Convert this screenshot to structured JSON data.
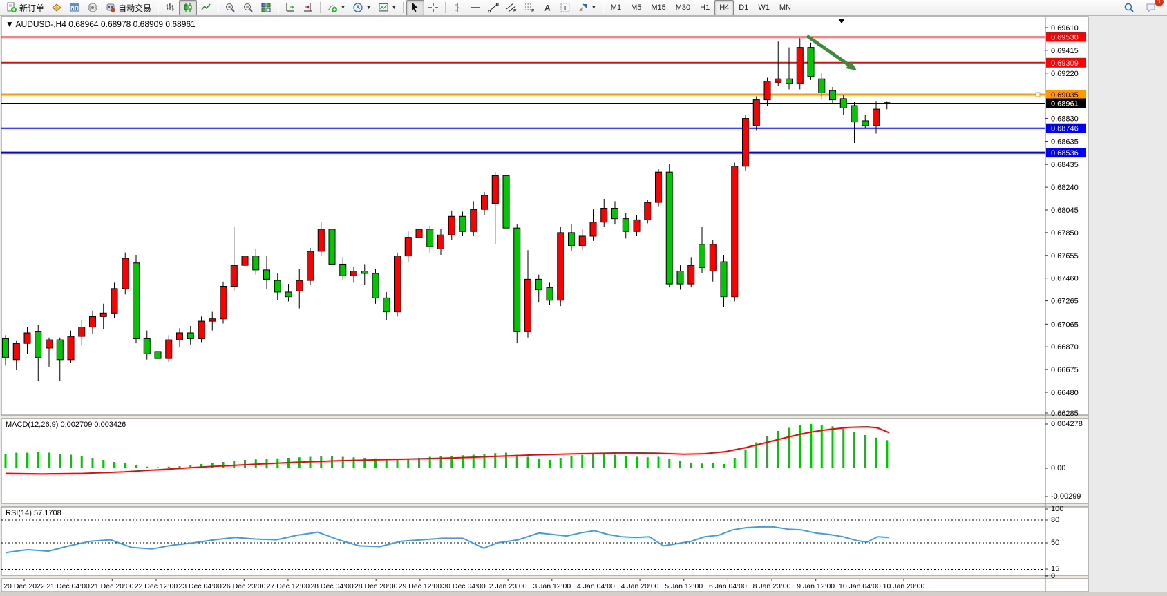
{
  "toolbar": {
    "buttons": [
      {
        "name": "new-order-button",
        "icon": "new-order",
        "label": "新订单"
      },
      {
        "name": "wallet-button",
        "icon": "wallet"
      },
      {
        "name": "charts-window-button",
        "icon": "chart-window"
      },
      {
        "name": "signals-button",
        "icon": "signal"
      },
      {
        "name": "auto-trading-button",
        "icon": "robot",
        "label": "自动交易"
      },
      {
        "sep": true
      },
      {
        "name": "bar-chart-button",
        "icon": "ohlc-bars"
      },
      {
        "name": "candlestick-button",
        "icon": "candles",
        "active": true
      },
      {
        "name": "line-chart-button",
        "icon": "line-chart"
      },
      {
        "sep": true
      },
      {
        "name": "zoom-in-button",
        "icon": "zoom-in"
      },
      {
        "name": "zoom-out-button",
        "icon": "zoom-out"
      },
      {
        "name": "tile-windows-button",
        "icon": "tiles"
      },
      {
        "sep": true
      },
      {
        "name": "auto-scroll-button",
        "icon": "auto-scroll"
      },
      {
        "name": "chart-shift-button",
        "icon": "chart-shift"
      },
      {
        "sep": true
      },
      {
        "name": "indicators-button",
        "icon": "indicator-add",
        "dropdown": true
      },
      {
        "name": "periods-button",
        "icon": "clock",
        "dropdown": true
      },
      {
        "name": "templates-button",
        "icon": "template",
        "dropdown": true
      },
      {
        "sep": true
      },
      {
        "name": "cursor-button",
        "icon": "cursor",
        "active": true
      },
      {
        "name": "crosshair-button",
        "icon": "crosshair"
      },
      {
        "sep": true
      },
      {
        "name": "vline-button",
        "icon": "vline"
      },
      {
        "name": "hline-button",
        "icon": "hline"
      },
      {
        "name": "trendline-button",
        "icon": "trendline"
      },
      {
        "name": "channel-button",
        "icon": "channel"
      },
      {
        "name": "fibonacci-button",
        "icon": "fibonacci"
      },
      {
        "name": "text-button",
        "icon": "text-a"
      },
      {
        "name": "label-button",
        "icon": "label-t"
      },
      {
        "name": "arrows-button",
        "icon": "arrows",
        "dropdown": true
      },
      {
        "sep": true
      }
    ],
    "timeframes": [
      "M1",
      "M5",
      "M15",
      "M30",
      "H1",
      "H4",
      "D1",
      "W1",
      "MN"
    ],
    "active_timeframe": "H4",
    "right_buttons": [
      {
        "name": "search-button",
        "icon": "search"
      },
      {
        "name": "notifications-button",
        "icon": "chat",
        "badge": "1"
      }
    ]
  },
  "chart_data": {
    "type": "candlestick",
    "symbol": "AUDUSD-",
    "timeframe": "H4",
    "title": "AUDUSD-,H4",
    "title_ohlc": "0.68964 0.68978 0.68909 0.68961",
    "last_bar": {
      "open": 0.68964,
      "high": 0.68978,
      "low": 0.68909,
      "close": 0.68961
    },
    "price_axis_labels": [
      0.6961,
      0.69415,
      0.6922,
      0.6883,
      0.68635,
      0.68435,
      0.6824,
      0.68045,
      0.6785,
      0.67655,
      0.6746,
      0.67265,
      0.67065,
      0.6687,
      0.66675,
      0.6648,
      0.66285
    ],
    "horizontal_lines": [
      {
        "price": 0.6953,
        "label": "0.69530",
        "color": "#FF0000",
        "width": 2,
        "text": "#FFFFFF"
      },
      {
        "price": 0.69309,
        "label": "0.69309",
        "color": "#FF0000",
        "width": 2,
        "text": "#FFFFFF"
      },
      {
        "price": 0.69035,
        "label": "0.69035",
        "color": "#FF9900",
        "width": 3,
        "text": "#000000",
        "handle": true
      },
      {
        "price": 0.68961,
        "label": "0.68961",
        "color": "#000000",
        "width": 1,
        "text": "#FFFFFF"
      },
      {
        "price": 0.68746,
        "label": "0.68746",
        "color": "#0000FF",
        "width": 2,
        "text": "#FFFFFF"
      },
      {
        "price": 0.68536,
        "label": "0.68536",
        "color": "#0000FF",
        "width": 3,
        "text": "#FFFFFF"
      }
    ],
    "time_axis_labels": [
      "20 Dec 2022",
      "21 Dec 04:00",
      "21 Dec 20:00",
      "22 Dec 12:00",
      "23 Dec 04:00",
      "26 Dec 23:00",
      "27 Dec 12:00",
      "28 Dec 04:00",
      "28 Dec 20:00",
      "29 Dec 12:00",
      "30 Dec 04:00",
      "2 Jan 23:00",
      "3 Jan 12:00",
      "4 Jan 04:00",
      "4 Jan 20:00",
      "5 Jan 12:00",
      "6 Jan 04:00",
      "8 Jan 23:00",
      "9 Jan 12:00",
      "10 Jan 04:00",
      "10 Jan 20:00"
    ],
    "candles": [
      [
        0.6694,
        0.6697,
        0.6671,
        0.6678
      ],
      [
        0.6676,
        0.6692,
        0.6667,
        0.669
      ],
      [
        0.669,
        0.6704,
        0.6681,
        0.6699
      ],
      [
        0.67,
        0.6706,
        0.6658,
        0.6678
      ],
      [
        0.6686,
        0.6695,
        0.667,
        0.6693
      ],
      [
        0.6693,
        0.6695,
        0.6658,
        0.6676
      ],
      [
        0.6676,
        0.6701,
        0.6673,
        0.6696
      ],
      [
        0.6696,
        0.671,
        0.6688,
        0.6704
      ],
      [
        0.6704,
        0.6718,
        0.6698,
        0.6713
      ],
      [
        0.6713,
        0.6724,
        0.6702,
        0.6716
      ],
      [
        0.6716,
        0.6742,
        0.6712,
        0.6737
      ],
      [
        0.6737,
        0.6768,
        0.6732,
        0.6763
      ],
      [
        0.6759,
        0.6766,
        0.669,
        0.6694
      ],
      [
        0.6694,
        0.6701,
        0.6676,
        0.6681
      ],
      [
        0.6683,
        0.6692,
        0.6671,
        0.6677
      ],
      [
        0.6677,
        0.6697,
        0.6674,
        0.6693
      ],
      [
        0.6693,
        0.6703,
        0.6687,
        0.6699
      ],
      [
        0.6699,
        0.6705,
        0.6689,
        0.6694
      ],
      [
        0.6694,
        0.6713,
        0.6691,
        0.6709
      ],
      [
        0.6709,
        0.6717,
        0.6701,
        0.6711
      ],
      [
        0.6711,
        0.6743,
        0.6707,
        0.6739
      ],
      [
        0.6739,
        0.679,
        0.6735,
        0.6757
      ],
      [
        0.6757,
        0.6769,
        0.6747,
        0.6765
      ],
      [
        0.6765,
        0.6771,
        0.6749,
        0.6753
      ],
      [
        0.6753,
        0.6765,
        0.6737,
        0.6745
      ],
      [
        0.6744,
        0.675,
        0.6727,
        0.6734
      ],
      [
        0.6734,
        0.6741,
        0.6726,
        0.673
      ],
      [
        0.6735,
        0.6754,
        0.672,
        0.6744
      ],
      [
        0.6744,
        0.6772,
        0.674,
        0.6769
      ],
      [
        0.6769,
        0.6794,
        0.6765,
        0.6788
      ],
      [
        0.6788,
        0.6792,
        0.6754,
        0.6758
      ],
      [
        0.6758,
        0.6764,
        0.6744,
        0.6748
      ],
      [
        0.6748,
        0.6756,
        0.6742,
        0.6752
      ],
      [
        0.6752,
        0.6758,
        0.674,
        0.675
      ],
      [
        0.675,
        0.6754,
        0.6724,
        0.6729
      ],
      [
        0.6729,
        0.6734,
        0.671,
        0.6717
      ],
      [
        0.6717,
        0.6768,
        0.6713,
        0.6765
      ],
      [
        0.6765,
        0.6786,
        0.676,
        0.6781
      ],
      [
        0.6781,
        0.6794,
        0.6776,
        0.6788
      ],
      [
        0.6788,
        0.6791,
        0.6768,
        0.6773
      ],
      [
        0.6771,
        0.6788,
        0.6766,
        0.6783
      ],
      [
        0.6783,
        0.6804,
        0.6779,
        0.6799
      ],
      [
        0.6799,
        0.6803,
        0.6782,
        0.6786
      ],
      [
        0.6786,
        0.6812,
        0.6782,
        0.6805
      ],
      [
        0.6805,
        0.682,
        0.68,
        0.6817
      ],
      [
        0.681,
        0.6837,
        0.6775,
        0.6834
      ],
      [
        0.6834,
        0.684,
        0.6786,
        0.6789
      ],
      [
        0.6789,
        0.6792,
        0.669,
        0.67
      ],
      [
        0.67,
        0.677,
        0.6695,
        0.6745
      ],
      [
        0.6745,
        0.6749,
        0.6725,
        0.6736
      ],
      [
        0.6738,
        0.6742,
        0.6723,
        0.6727
      ],
      [
        0.6727,
        0.679,
        0.6722,
        0.6785
      ],
      [
        0.6785,
        0.6792,
        0.6769,
        0.6774
      ],
      [
        0.6774,
        0.6788,
        0.677,
        0.6782
      ],
      [
        0.6782,
        0.6805,
        0.6778,
        0.6794
      ],
      [
        0.6794,
        0.6814,
        0.679,
        0.6806
      ],
      [
        0.6806,
        0.6812,
        0.6792,
        0.6797
      ],
      [
        0.6797,
        0.6802,
        0.678,
        0.6786
      ],
      [
        0.6786,
        0.68,
        0.6782,
        0.6796
      ],
      [
        0.6796,
        0.6813,
        0.6793,
        0.6811
      ],
      [
        0.6811,
        0.684,
        0.6807,
        0.6837
      ],
      [
        0.6837,
        0.6844,
        0.6738,
        0.6741
      ],
      [
        0.6752,
        0.6757,
        0.6736,
        0.6741
      ],
      [
        0.6741,
        0.6764,
        0.6738,
        0.6757
      ],
      [
        0.6775,
        0.679,
        0.675,
        0.6755
      ],
      [
        0.6752,
        0.6779,
        0.6743,
        0.6775
      ],
      [
        0.676,
        0.6766,
        0.6721,
        0.673
      ],
      [
        0.673,
        0.6845,
        0.6726,
        0.6842
      ],
      [
        0.6842,
        0.6886,
        0.6838,
        0.6883
      ],
      [
        0.6877,
        0.6902,
        0.6873,
        0.6899
      ],
      [
        0.6899,
        0.6918,
        0.6894,
        0.6915
      ],
      [
        0.6914,
        0.6949,
        0.6911,
        0.6917
      ],
      [
        0.6917,
        0.6944,
        0.6908,
        0.6913
      ],
      [
        0.6913,
        0.6952,
        0.6908,
        0.6944
      ],
      [
        0.6944,
        0.6948,
        0.6916,
        0.6919
      ],
      [
        0.6917,
        0.6922,
        0.69,
        0.6905
      ],
      [
        0.6907,
        0.691,
        0.6896,
        0.6899
      ],
      [
        0.69,
        0.6903,
        0.6886,
        0.6892
      ],
      [
        0.6894,
        0.6897,
        0.6862,
        0.688
      ],
      [
        0.6881,
        0.6886,
        0.6875,
        0.6877
      ],
      [
        0.6877,
        0.6898,
        0.687,
        0.6891
      ],
      [
        0.68964,
        0.68978,
        0.68909,
        0.68961
      ]
    ],
    "macd": {
      "label": "MACD(12,26,9)",
      "value_text": "0.002709 0.003426",
      "axis_labels": [
        "0.004278",
        "0.00",
        "-0.00299"
      ],
      "histogram": [
        1.4,
        1.5,
        1.5,
        1.6,
        1.5,
        1.4,
        1.3,
        1.2,
        1.0,
        0.8,
        0.6,
        0.5,
        0.3,
        0.15,
        0.1,
        0.15,
        0.2,
        0.3,
        0.4,
        0.5,
        0.6,
        0.7,
        0.8,
        0.85,
        0.9,
        0.95,
        1.0,
        1.05,
        1.1,
        1.15,
        1.15,
        1.1,
        1.05,
        1.0,
        0.95,
        0.85,
        0.8,
        0.9,
        1.0,
        1.1,
        1.15,
        1.2,
        1.25,
        1.3,
        1.35,
        1.45,
        1.5,
        1.3,
        1.1,
        0.9,
        0.8,
        1.0,
        1.2,
        1.3,
        1.35,
        1.4,
        1.3,
        1.2,
        1.1,
        1.05,
        1.1,
        0.9,
        0.7,
        0.5,
        0.45,
        0.5,
        0.4,
        1.0,
        1.8,
        2.5,
        3.1,
        3.6,
        3.9,
        4.2,
        4.278,
        4.2,
        4.05,
        3.8,
        3.5,
        3.2,
        2.95,
        2.709
      ],
      "signal": [
        [
          8,
          -0.5
        ],
        [
          60,
          -0.55
        ],
        [
          120,
          -0.5
        ],
        [
          180,
          -0.35
        ],
        [
          240,
          -0.1
        ],
        [
          300,
          0.15
        ],
        [
          360,
          0.35
        ],
        [
          420,
          0.55
        ],
        [
          480,
          0.7
        ],
        [
          540,
          0.8
        ],
        [
          600,
          0.9
        ],
        [
          660,
          1.0
        ],
        [
          720,
          1.15
        ],
        [
          780,
          1.3
        ],
        [
          840,
          1.4
        ],
        [
          900,
          1.48
        ],
        [
          950,
          1.45
        ],
        [
          990,
          1.35
        ],
        [
          1020,
          1.4
        ],
        [
          1050,
          1.6
        ],
        [
          1080,
          2.0
        ],
        [
          1110,
          2.5
        ],
        [
          1140,
          3.0
        ],
        [
          1170,
          3.45
        ],
        [
          1200,
          3.75
        ],
        [
          1230,
          3.95
        ],
        [
          1255,
          4.0
        ],
        [
          1270,
          3.9
        ],
        [
          1287,
          3.43
        ]
      ]
    },
    "rsi": {
      "label": "RSI(14)",
      "value_text": "57.1708",
      "axis_labels": [
        [
          100,
          740
        ],
        [
          80,
          756
        ],
        [
          50,
          789
        ],
        [
          15,
          827
        ],
        [
          0,
          837
        ]
      ],
      "levels": [
        80,
        50,
        15
      ],
      "points": [
        [
          8,
          37
        ],
        [
          40,
          41
        ],
        [
          70,
          39
        ],
        [
          100,
          46
        ],
        [
          130,
          52
        ],
        [
          160,
          54
        ],
        [
          190,
          44
        ],
        [
          220,
          42
        ],
        [
          250,
          47
        ],
        [
          280,
          50
        ],
        [
          310,
          54
        ],
        [
          340,
          57
        ],
        [
          370,
          55
        ],
        [
          400,
          54
        ],
        [
          430,
          60
        ],
        [
          460,
          64
        ],
        [
          490,
          54
        ],
        [
          520,
          46
        ],
        [
          550,
          45
        ],
        [
          580,
          52
        ],
        [
          610,
          54
        ],
        [
          640,
          56
        ],
        [
          670,
          56
        ],
        [
          700,
          43
        ],
        [
          720,
          50
        ],
        [
          750,
          54
        ],
        [
          780,
          63
        ],
        [
          800,
          61
        ],
        [
          820,
          59
        ],
        [
          840,
          63
        ],
        [
          860,
          66
        ],
        [
          880,
          61
        ],
        [
          900,
          58
        ],
        [
          920,
          57
        ],
        [
          940,
          58
        ],
        [
          960,
          46
        ],
        [
          980,
          49
        ],
        [
          1000,
          52
        ],
        [
          1020,
          58
        ],
        [
          1040,
          60
        ],
        [
          1060,
          67
        ],
        [
          1080,
          70
        ],
        [
          1100,
          71
        ],
        [
          1120,
          71
        ],
        [
          1140,
          68
        ],
        [
          1160,
          67
        ],
        [
          1180,
          63
        ],
        [
          1200,
          61
        ],
        [
          1220,
          58
        ],
        [
          1240,
          53
        ],
        [
          1255,
          51
        ],
        [
          1270,
          58
        ],
        [
          1287,
          57.17
        ]
      ]
    },
    "annotation_arrow": {
      "from": [
        1168,
        52
      ],
      "to": [
        1240,
        102
      ],
      "color": "#3C8C3C"
    },
    "colors": {
      "bull": "#FF0000",
      "bear": "#00C800",
      "wick": "#000000",
      "macd_hist": "#00C800",
      "macd_signal": "#FF0000",
      "rsi_line": "#3E9DE5",
      "background": "#FFFFFF",
      "border": "#808080"
    }
  }
}
